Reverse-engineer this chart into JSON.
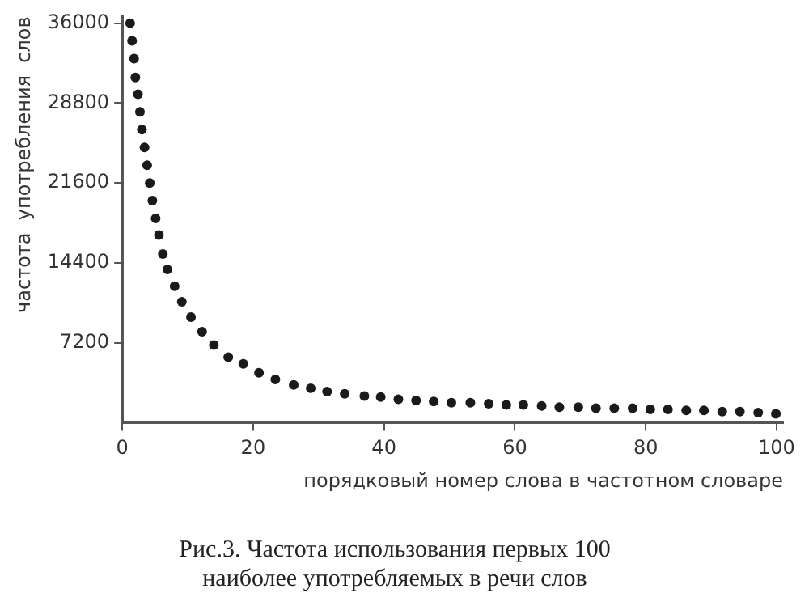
{
  "chart_data": {
    "type": "scatter",
    "title": "Рис.3. Частота использования первых 100\nнаиболее употребляемых в речи слов",
    "xlabel": "порядковый номер слова в частотном словаре",
    "ylabel": "частота  употребления  слов",
    "x": [
      1.2,
      1.5,
      1.8,
      2.0,
      2.4,
      2.7,
      3.0,
      3.4,
      3.8,
      4.2,
      4.6,
      5.1,
      5.6,
      6.2,
      6.9,
      8.0,
      9.1,
      10.5,
      12.2,
      14.0,
      16.2,
      18.5,
      20.9,
      23.4,
      26.2,
      28.8,
      31.3,
      34.0,
      37.0,
      39.5,
      42.2,
      44.9,
      47.6,
      50.3,
      53.2,
      56.0,
      58.7,
      61.3,
      64.1,
      66.8,
      69.7,
      72.4,
      75.2,
      78.0,
      80.7,
      83.4,
      86.2,
      88.9,
      91.7,
      94.4,
      97.2,
      99.9
    ],
    "series": [
      {
        "color": "#1a1a1a",
        "values": [
          36000,
          34400,
          32800,
          31100,
          29600,
          28000,
          26400,
          24800,
          23200,
          21600,
          20000,
          18400,
          16900,
          15200,
          13800,
          12300,
          10900,
          9500,
          8200,
          7000,
          5900,
          5300,
          4500,
          3900,
          3400,
          3100,
          2800,
          2600,
          2400,
          2300,
          2100,
          2000,
          1900,
          1800,
          1800,
          1700,
          1600,
          1600,
          1500,
          1400,
          1400,
          1300,
          1300,
          1300,
          1200,
          1200,
          1100,
          1100,
          1000,
          1000,
          900,
          800
        ]
      }
    ],
    "xlim": [
      0,
      101
    ],
    "xticks": [
      0,
      20,
      40,
      60,
      80,
      100
    ],
    "ylim": [
      0,
      36600
    ],
    "yticks": [
      7200,
      14400,
      21600,
      28800,
      36000
    ],
    "grid": false,
    "legend": false,
    "marker": "circle"
  }
}
